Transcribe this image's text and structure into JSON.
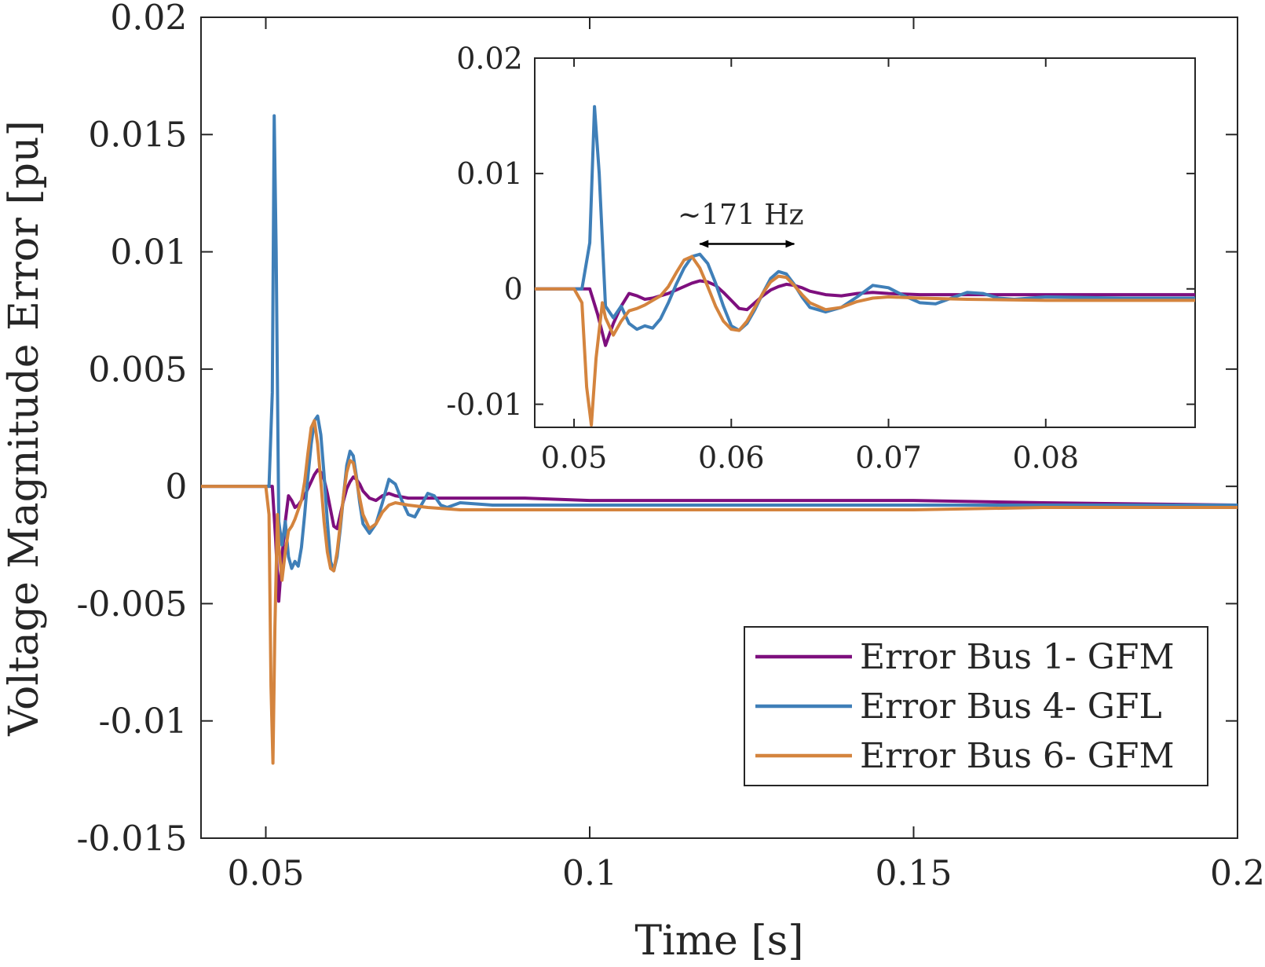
{
  "chart_data": [
    {
      "type": "line",
      "name": "main",
      "xlabel": "Time [s]",
      "ylabel": "Voltage Magnitude Error [pu]",
      "xlim": [
        0.04,
        0.2
      ],
      "ylim": [
        -0.015,
        0.02
      ],
      "xticks": [
        0.05,
        0.1,
        0.15,
        0.2
      ],
      "xtick_labels": [
        "0.05",
        "0.1",
        "0.15",
        "0.2"
      ],
      "yticks": [
        0.02,
        0.015,
        0.01,
        0.005,
        0,
        -0.005,
        -0.01,
        -0.015
      ],
      "ytick_labels": [
        "0.02",
        "0.015",
        "0.01",
        "0.005",
        "0",
        "-0.005",
        "-0.01",
        "-0.015"
      ],
      "grid": false,
      "legend_position": "bottom-right",
      "series": [
        {
          "name": "Error Bus 1- GFM",
          "color": "#7E0F7E",
          "x": [
            0.04,
            0.05,
            0.051,
            0.0515,
            0.052,
            0.0525,
            0.053,
            0.0535,
            0.054,
            0.0545,
            0.055,
            0.0555,
            0.056,
            0.0565,
            0.057,
            0.0575,
            0.058,
            0.0585,
            0.059,
            0.0595,
            0.06,
            0.0605,
            0.061,
            0.0615,
            0.062,
            0.0625,
            0.063,
            0.0635,
            0.064,
            0.0645,
            0.065,
            0.066,
            0.067,
            0.068,
            0.069,
            0.07,
            0.072,
            0.075,
            0.08,
            0.09,
            0.1,
            0.12,
            0.15,
            0.17,
            0.2
          ],
          "values": [
            0,
            0,
            0,
            -0.0022,
            -0.0049,
            -0.003,
            -0.0015,
            -0.0004,
            -0.0006,
            -0.0009,
            -0.0008,
            -0.0006,
            -0.0004,
            -0.0001,
            0.0002,
            0.0005,
            0.0007,
            0.0006,
            0.0003,
            -0.0003,
            -0.001,
            -0.0017,
            -0.0018,
            -0.0012,
            -0.0006,
            -0.0001,
            0.0002,
            0.0004,
            0.0003,
            0.0001,
            -0.0002,
            -0.0005,
            -0.0006,
            -0.0004,
            -0.0003,
            -0.0004,
            -0.0005,
            -0.0005,
            -0.0005,
            -0.0005,
            -0.0006,
            -0.0006,
            -0.0006,
            -0.0007,
            -0.0008
          ]
        },
        {
          "name": "Error Bus 4- GFL",
          "color": "#3F7FB8",
          "x": [
            0.04,
            0.05,
            0.0505,
            0.051,
            0.0513,
            0.0516,
            0.052,
            0.0525,
            0.053,
            0.0535,
            0.054,
            0.0545,
            0.055,
            0.0555,
            0.056,
            0.0565,
            0.057,
            0.0575,
            0.058,
            0.0585,
            0.059,
            0.0595,
            0.06,
            0.0605,
            0.061,
            0.0615,
            0.062,
            0.0625,
            0.063,
            0.0635,
            0.064,
            0.0645,
            0.065,
            0.066,
            0.067,
            0.068,
            0.069,
            0.07,
            0.071,
            0.072,
            0.073,
            0.074,
            0.075,
            0.076,
            0.077,
            0.078,
            0.08,
            0.085,
            0.09,
            0.1,
            0.12,
            0.15,
            0.17,
            0.2
          ],
          "values": [
            0,
            0,
            0,
            0.004,
            0.0158,
            0.01,
            -0.0015,
            -0.0025,
            -0.0015,
            -0.003,
            -0.0035,
            -0.0032,
            -0.0034,
            -0.0026,
            -0.0012,
            0.0004,
            0.0018,
            0.0028,
            0.003,
            0.0022,
            0.0005,
            -0.0015,
            -0.0032,
            -0.0036,
            -0.003,
            -0.0018,
            -0.0004,
            0.0009,
            0.0015,
            0.0013,
            0.0004,
            -0.0007,
            -0.0016,
            -0.002,
            -0.0016,
            -0.0007,
            0.0003,
            0.0001,
            -0.0006,
            -0.0012,
            -0.0013,
            -0.0008,
            -0.0003,
            -0.0004,
            -0.0008,
            -0.0009,
            -0.0007,
            -0.0008,
            -0.0008,
            -0.0008,
            -0.0008,
            -0.0008,
            -0.0008,
            -0.0008
          ]
        },
        {
          "name": "Error Bus 6- GFM",
          "color": "#D4843E",
          "x": [
            0.04,
            0.05,
            0.0505,
            0.0508,
            0.0511,
            0.0514,
            0.0518,
            0.052,
            0.0525,
            0.053,
            0.0535,
            0.054,
            0.0545,
            0.055,
            0.0555,
            0.056,
            0.0565,
            0.057,
            0.0575,
            0.058,
            0.0585,
            0.059,
            0.0595,
            0.06,
            0.0605,
            0.061,
            0.0615,
            0.062,
            0.0625,
            0.063,
            0.0635,
            0.064,
            0.0645,
            0.065,
            0.066,
            0.067,
            0.068,
            0.069,
            0.07,
            0.072,
            0.075,
            0.08,
            0.09,
            0.1,
            0.12,
            0.15,
            0.17,
            0.2
          ],
          "values": [
            0,
            0,
            -0.0012,
            -0.0085,
            -0.0118,
            -0.006,
            -0.0012,
            -0.0025,
            -0.004,
            -0.0028,
            -0.0019,
            -0.0017,
            -0.0014,
            -0.001,
            -0.0006,
            0.0002,
            0.0014,
            0.0025,
            0.0028,
            0.0018,
            0.0002,
            -0.0015,
            -0.0028,
            -0.0035,
            -0.0036,
            -0.0028,
            -0.0016,
            -0.0004,
            0.0006,
            0.0011,
            0.001,
            0.0003,
            -0.0005,
            -0.0012,
            -0.0018,
            -0.0016,
            -0.0011,
            -0.0008,
            -0.0007,
            -0.0008,
            -0.0009,
            -0.001,
            -0.001,
            -0.001,
            -0.001,
            -0.001,
            -0.0009,
            -0.0009
          ]
        }
      ]
    },
    {
      "type": "line",
      "name": "inset",
      "xlim": [
        0.0475,
        0.0895
      ],
      "ylim": [
        -0.012,
        0.02
      ],
      "xticks": [
        0.05,
        0.06,
        0.07,
        0.08
      ],
      "xtick_labels": [
        "0.05",
        "0.06",
        "0.07",
        "0.08"
      ],
      "yticks": [
        0.02,
        0.01,
        0,
        -0.01
      ],
      "ytick_labels": [
        "0.02",
        "0.01",
        "0",
        "-0.01"
      ],
      "grid": false,
      "annotation": {
        "text": "~171 Hz",
        "x_start": 0.058,
        "x_end": 0.064,
        "y": 0.0039
      }
    }
  ]
}
